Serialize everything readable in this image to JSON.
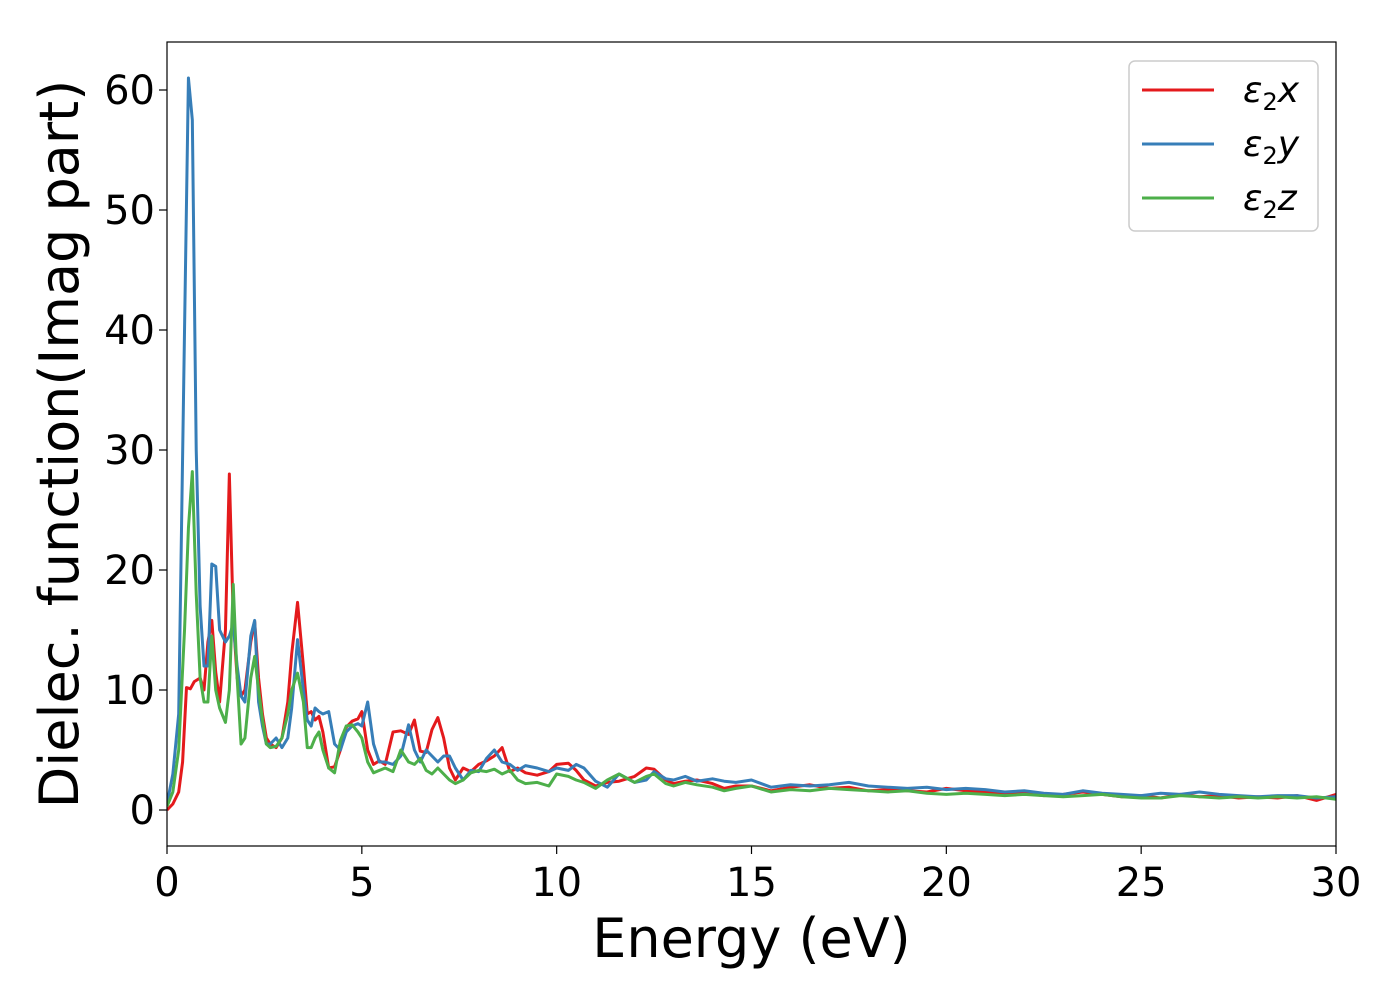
{
  "chart_data": {
    "type": "line",
    "title": "",
    "xlabel": "Energy (eV)",
    "ylabel": "Dielec. function(Imag part)",
    "xlim": [
      0,
      30
    ],
    "ylim": [
      -3,
      64
    ],
    "xticks": [
      0,
      5,
      10,
      15,
      20,
      25,
      30
    ],
    "yticks": [
      0,
      10,
      20,
      30,
      40,
      50,
      60
    ],
    "grid": false,
    "legend_position": "top-right",
    "series": [
      {
        "name": "ε2x",
        "legend": {
          "base": "ε",
          "sub": "2",
          "var": "x"
        },
        "color": "#e41a1c",
        "x": [
          0,
          0.15,
          0.3,
          0.4,
          0.5,
          0.6,
          0.7,
          0.85,
          0.95,
          1.05,
          1.15,
          1.25,
          1.35,
          1.5,
          1.6,
          1.7,
          1.8,
          1.9,
          2.0,
          2.15,
          2.25,
          2.35,
          2.45,
          2.55,
          2.65,
          2.8,
          2.95,
          3.1,
          3.2,
          3.35,
          3.5,
          3.6,
          3.7,
          3.8,
          3.9,
          4.0,
          4.15,
          4.3,
          4.45,
          4.6,
          4.75,
          4.9,
          5.0,
          5.15,
          5.3,
          5.45,
          5.6,
          5.8,
          6.0,
          6.2,
          6.35,
          6.5,
          6.65,
          6.8,
          6.95,
          7.1,
          7.25,
          7.4,
          7.6,
          7.8,
          8.0,
          8.2,
          8.4,
          8.6,
          8.8,
          9.0,
          9.2,
          9.5,
          9.8,
          10.0,
          10.3,
          10.5,
          10.7,
          11.0,
          11.3,
          11.6,
          12.0,
          12.3,
          12.5,
          12.8,
          13.0,
          13.3,
          13.6,
          14.0,
          14.3,
          14.6,
          15.0,
          15.5,
          16.0,
          16.5,
          17.0,
          17.5,
          18.0,
          18.5,
          19.0,
          19.5,
          20.0,
          20.5,
          21.0,
          21.5,
          22.0,
          22.5,
          23.0,
          23.5,
          24.0,
          24.5,
          25.0,
          25.5,
          26.0,
          26.5,
          27.0,
          27.5,
          28.0,
          28.5,
          29.0,
          29.5,
          30.0
        ],
        "y": [
          0,
          0.5,
          1.5,
          4,
          10.2,
          10.1,
          10.7,
          11,
          10,
          14,
          15.8,
          11.5,
          9,
          15,
          28,
          16,
          11,
          9.5,
          10,
          14,
          15.7,
          11,
          8,
          6,
          5.5,
          5.2,
          6,
          9,
          13,
          17.3,
          12,
          8,
          8.2,
          7.5,
          7.8,
          6.5,
          3.5,
          3.6,
          5,
          6.9,
          7.4,
          7.6,
          8.2,
          5,
          3.8,
          4.1,
          3.8,
          6.5,
          6.6,
          6.3,
          7.5,
          4.9,
          4.8,
          6.7,
          7.7,
          6,
          3.5,
          2.5,
          3.5,
          3.2,
          3.8,
          4.1,
          4.5,
          5.2,
          3.2,
          3.5,
          3.1,
          2.9,
          3.2,
          3.8,
          3.9,
          3.3,
          2.5,
          2.0,
          2.3,
          2.4,
          2.8,
          3.5,
          3.4,
          2.5,
          2.2,
          2.4,
          2.5,
          2.2,
          1.8,
          2.0,
          2.0,
          1.6,
          1.9,
          2.1,
          1.8,
          1.9,
          1.6,
          1.7,
          1.6,
          1.5,
          1.8,
          1.6,
          1.5,
          1.4,
          1.4,
          1.2,
          1.3,
          1.5,
          1.3,
          1.1,
          1.2,
          1.0,
          1.3,
          1.1,
          1.2,
          1.0,
          1.1,
          1.0,
          1.2,
          0.8,
          1.3
        ]
      },
      {
        "name": "ε2y",
        "legend": {
          "base": "ε",
          "sub": "2",
          "var": "y"
        },
        "color": "#377eb8",
        "x": [
          0,
          0.15,
          0.3,
          0.45,
          0.55,
          0.65,
          0.75,
          0.85,
          0.95,
          1.05,
          1.15,
          1.25,
          1.35,
          1.5,
          1.6,
          1.7,
          1.8,
          1.9,
          2.0,
          2.15,
          2.25,
          2.35,
          2.45,
          2.55,
          2.65,
          2.8,
          2.95,
          3.1,
          3.2,
          3.35,
          3.5,
          3.6,
          3.7,
          3.8,
          3.9,
          4.0,
          4.15,
          4.3,
          4.45,
          4.6,
          4.75,
          4.9,
          5.0,
          5.15,
          5.3,
          5.45,
          5.6,
          5.8,
          6.0,
          6.2,
          6.35,
          6.5,
          6.65,
          6.8,
          6.95,
          7.1,
          7.25,
          7.4,
          7.6,
          7.8,
          8.0,
          8.2,
          8.4,
          8.6,
          8.8,
          9.0,
          9.2,
          9.5,
          9.8,
          10.0,
          10.3,
          10.5,
          10.7,
          11.0,
          11.3,
          11.6,
          12.0,
          12.3,
          12.5,
          12.8,
          13.0,
          13.3,
          13.6,
          14.0,
          14.3,
          14.6,
          15.0,
          15.5,
          16.0,
          16.5,
          17.0,
          17.5,
          18.0,
          18.5,
          19.0,
          19.5,
          20.0,
          20.5,
          21.0,
          21.5,
          22.0,
          22.5,
          23.0,
          23.5,
          24.0,
          24.5,
          25.0,
          25.5,
          26.0,
          26.5,
          27.0,
          27.5,
          28.0,
          28.5,
          29.0,
          29.5,
          30.0
        ],
        "y": [
          0.5,
          3,
          8,
          40,
          61,
          57.5,
          30,
          17,
          12,
          12,
          20.5,
          20.3,
          15,
          14,
          14.5,
          15.5,
          12,
          9.5,
          9,
          14.5,
          15.8,
          9,
          7,
          5.5,
          5.5,
          6,
          5.2,
          6,
          8.5,
          14.2,
          10,
          7.5,
          7,
          8.5,
          8.2,
          8,
          8.2,
          5.5,
          5,
          6.5,
          7,
          7.2,
          7,
          9,
          5.5,
          4,
          4,
          3.8,
          4.5,
          7.1,
          5,
          4,
          5,
          4.5,
          4,
          4.5,
          4.5,
          3.5,
          2.5,
          3.3,
          3.2,
          4.3,
          5,
          4,
          3.8,
          3.3,
          3.7,
          3.5,
          3.2,
          3.5,
          3.3,
          3.8,
          3.5,
          2.4,
          1.9,
          3.0,
          2.3,
          2.5,
          3.2,
          2.6,
          2.5,
          2.8,
          2.4,
          2.6,
          2.4,
          2.3,
          2.5,
          1.9,
          2.1,
          2.0,
          2.1,
          2.3,
          2.0,
          1.9,
          1.8,
          1.9,
          1.7,
          1.8,
          1.7,
          1.5,
          1.6,
          1.4,
          1.3,
          1.6,
          1.4,
          1.3,
          1.2,
          1.4,
          1.3,
          1.5,
          1.3,
          1.2,
          1.1,
          1.2,
          1.2,
          1.0,
          1.1
        ]
      },
      {
        "name": "ε2z",
        "legend": {
          "base": "ε",
          "sub": "2",
          "var": "z"
        },
        "color": "#4daf4a",
        "x": [
          0,
          0.15,
          0.3,
          0.45,
          0.55,
          0.65,
          0.75,
          0.85,
          0.95,
          1.05,
          1.15,
          1.25,
          1.35,
          1.5,
          1.6,
          1.7,
          1.8,
          1.9,
          2.0,
          2.15,
          2.25,
          2.35,
          2.45,
          2.55,
          2.65,
          2.8,
          2.95,
          3.1,
          3.2,
          3.35,
          3.5,
          3.6,
          3.7,
          3.8,
          3.9,
          4.0,
          4.15,
          4.3,
          4.45,
          4.6,
          4.75,
          4.9,
          5.0,
          5.15,
          5.3,
          5.45,
          5.6,
          5.8,
          6.0,
          6.2,
          6.35,
          6.5,
          6.65,
          6.8,
          6.95,
          7.1,
          7.25,
          7.4,
          7.6,
          7.8,
          8.0,
          8.2,
          8.4,
          8.6,
          8.8,
          9.0,
          9.2,
          9.5,
          9.8,
          10.0,
          10.3,
          10.5,
          10.7,
          11.0,
          11.3,
          11.6,
          12.0,
          12.3,
          12.5,
          12.8,
          13.0,
          13.3,
          13.6,
          14.0,
          14.3,
          14.6,
          15.0,
          15.5,
          16.0,
          16.5,
          17.0,
          17.5,
          18.0,
          18.5,
          19.0,
          19.5,
          20.0,
          20.5,
          21.0,
          21.5,
          22.0,
          22.5,
          23.0,
          23.5,
          24.0,
          24.5,
          25.0,
          25.5,
          26.0,
          26.5,
          27.0,
          27.5,
          28.0,
          28.5,
          29.0,
          29.5,
          30.0
        ],
        "y": [
          0.3,
          1.5,
          5,
          15,
          23.5,
          28.2,
          18,
          11,
          9,
          9,
          14.5,
          10,
          8.5,
          7.3,
          10,
          18.8,
          11,
          5.5,
          6,
          11,
          12.8,
          10,
          7.5,
          5.5,
          5.2,
          5.3,
          6,
          8,
          10,
          11.4,
          9,
          5.2,
          5.2,
          6,
          6.5,
          5,
          3.5,
          3.1,
          5.8,
          7,
          7.1,
          6.5,
          6,
          4,
          3.1,
          3.3,
          3.5,
          3.2,
          5,
          4,
          3.8,
          4.3,
          3.3,
          3,
          3.5,
          3,
          2.5,
          2.2,
          2.5,
          3.1,
          3.3,
          3.2,
          3.4,
          3.0,
          3.3,
          2.5,
          2.2,
          2.3,
          2.0,
          3.0,
          2.8,
          2.5,
          2.3,
          1.8,
          2.5,
          3.0,
          2.3,
          2.8,
          3.0,
          2.2,
          2.0,
          2.3,
          2.1,
          1.9,
          1.6,
          1.8,
          2.0,
          1.5,
          1.7,
          1.6,
          1.8,
          1.7,
          1.6,
          1.5,
          1.6,
          1.4,
          1.3,
          1.4,
          1.3,
          1.2,
          1.3,
          1.2,
          1.1,
          1.2,
          1.3,
          1.1,
          1.0,
          1.0,
          1.2,
          1.1,
          1.0,
          1.1,
          1.0,
          1.1,
          1.0,
          1.1,
          0.9
        ]
      }
    ]
  }
}
